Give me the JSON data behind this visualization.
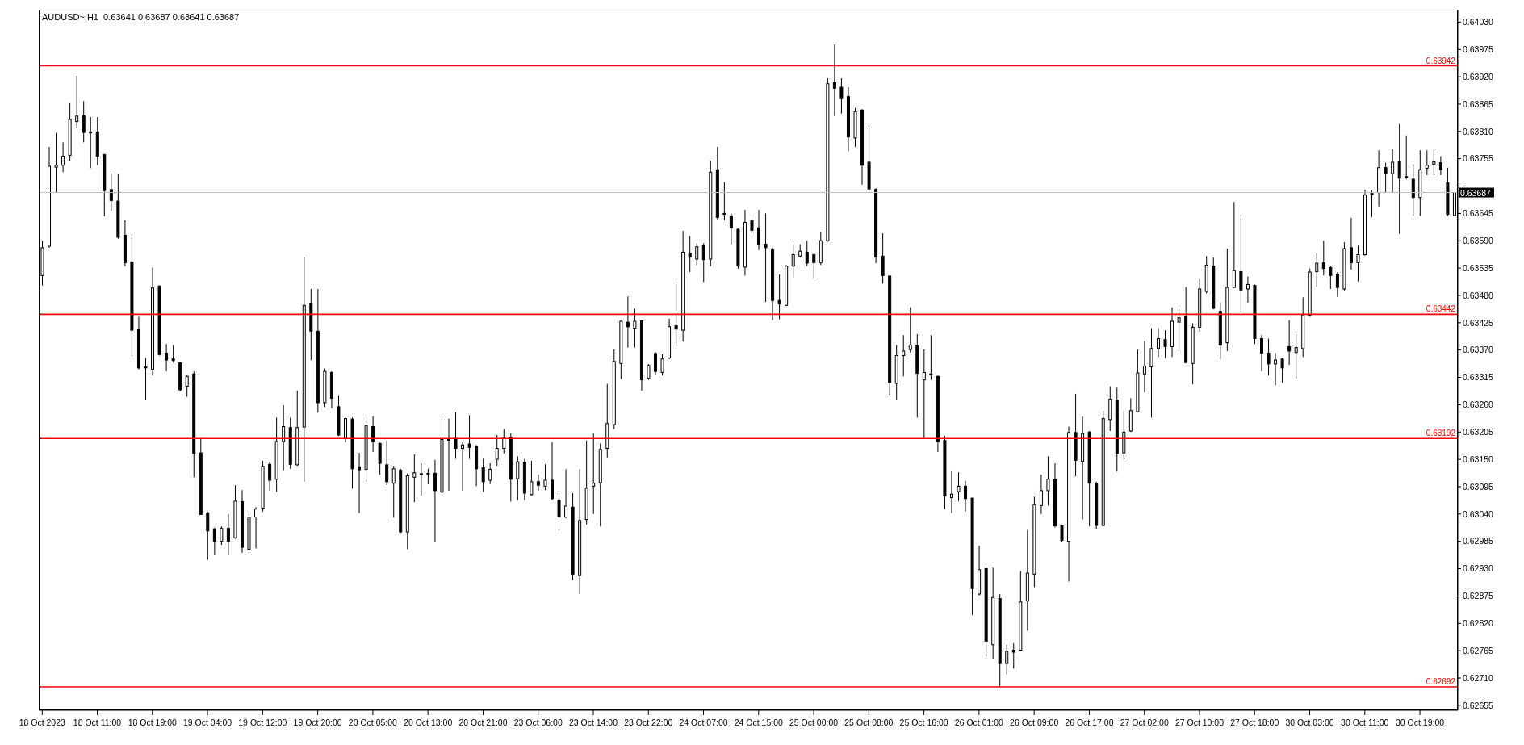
{
  "chart_data": {
    "type": "candlestick",
    "title": "AUDUSD~,H1  0.63641 0.63687 0.63641 0.63687",
    "categories": [
      "18 Oct 2023",
      null,
      null,
      null,
      null,
      null,
      null,
      null,
      "18 Oct 11:00",
      null,
      null,
      null,
      null,
      null,
      null,
      null,
      "18 Oct 19:00",
      null,
      null,
      null,
      null,
      null,
      null,
      null,
      "19 Oct 04:00",
      null,
      null,
      null,
      null,
      null,
      null,
      null,
      "19 Oct 12:00",
      null,
      null,
      null,
      null,
      null,
      null,
      null,
      "19 Oct 20:00",
      null,
      null,
      null,
      null,
      null,
      null,
      null,
      "20 Oct 05:00",
      null,
      null,
      null,
      null,
      null,
      null,
      null,
      "20 Oct 13:00",
      null,
      null,
      null,
      null,
      null,
      null,
      null,
      "20 Oct 21:00",
      null,
      null,
      null,
      null,
      null,
      null,
      null,
      "23 Oct 06:00",
      null,
      null,
      null,
      null,
      null,
      null,
      null,
      "23 Oct 14:00",
      null,
      null,
      null,
      null,
      null,
      null,
      null,
      "23 Oct 22:00",
      null,
      null,
      null,
      null,
      null,
      null,
      null,
      "24 Oct 07:00",
      null,
      null,
      null,
      null,
      null,
      null,
      null,
      "24 Oct 15:00",
      null,
      null,
      null,
      null,
      null,
      null,
      null,
      "25 Oct 00:00",
      null,
      null,
      null,
      null,
      null,
      null,
      null,
      "25 Oct 08:00",
      null,
      null,
      null,
      null,
      null,
      null,
      null,
      "25 Oct 16:00",
      null,
      null,
      null,
      null,
      null,
      null,
      null,
      "26 Oct 01:00",
      null,
      null,
      null,
      null,
      null,
      null,
      null,
      "26 Oct 09:00",
      null,
      null,
      null,
      null,
      null,
      null,
      null,
      "26 Oct 17:00",
      null,
      null,
      null,
      null,
      null,
      null,
      null,
      "27 Oct 02:00",
      null,
      null,
      null,
      null,
      null,
      null,
      null,
      "27 Oct 10:00",
      null,
      null,
      null,
      null,
      null,
      null,
      null,
      "27 Oct 18:00",
      null,
      null,
      null,
      null,
      null,
      null,
      null,
      "30 Oct 03:00",
      null,
      null,
      null,
      null,
      null,
      null,
      null,
      "30 Oct 11:00",
      null,
      null,
      null,
      null,
      null,
      null,
      null,
      "30 Oct 19:00",
      null,
      null,
      null,
      null,
      null
    ],
    "ohlc": [
      [
        0.6352,
        0.6359,
        0.635,
        0.63576
      ],
      [
        0.63579,
        0.63779,
        0.63576,
        0.6374
      ],
      [
        0.63738,
        0.63807,
        0.63688,
        0.63742
      ],
      [
        0.63742,
        0.63788,
        0.63728,
        0.6376
      ],
      [
        0.63762,
        0.63867,
        0.63751,
        0.63834
      ],
      [
        0.6383,
        0.63922,
        0.63816,
        0.63841
      ],
      [
        0.63842,
        0.63871,
        0.63788,
        0.63808
      ],
      [
        0.63807,
        0.63839,
        0.63736,
        0.63809
      ],
      [
        0.63809,
        0.63839,
        0.63742,
        0.6376
      ],
      [
        0.63763,
        0.63765,
        0.63639,
        0.63691
      ],
      [
        0.63693,
        0.63725,
        0.6365,
        0.63671
      ],
      [
        0.6367,
        0.63724,
        0.63594,
        0.63597
      ],
      [
        0.63601,
        0.63631,
        0.63539,
        0.63546
      ],
      [
        0.63547,
        0.63604,
        0.63359,
        0.6341
      ],
      [
        0.63411,
        0.63437,
        0.63331,
        0.63334
      ],
      [
        0.63336,
        0.63354,
        0.63269,
        0.63334
      ],
      [
        0.63331,
        0.63536,
        0.63319,
        0.63495
      ],
      [
        0.63499,
        0.635,
        0.63359,
        0.63361
      ],
      [
        0.63364,
        0.63382,
        0.63327,
        0.6335
      ],
      [
        0.63352,
        0.6338,
        0.63345,
        0.63349
      ],
      [
        0.63344,
        0.63345,
        0.63287,
        0.6329
      ],
      [
        0.63297,
        0.63319,
        0.63276,
        0.63317
      ],
      [
        0.63322,
        0.63327,
        0.63114,
        0.63162
      ],
      [
        0.63163,
        0.63193,
        0.63039,
        0.63039
      ],
      [
        0.63042,
        0.63045,
        0.62948,
        0.63006
      ],
      [
        0.6301,
        0.63013,
        0.62957,
        0.62985
      ],
      [
        0.62985,
        0.63015,
        0.62978,
        0.63011
      ],
      [
        0.63011,
        0.6304,
        0.62957,
        0.62985
      ],
      [
        0.62992,
        0.63098,
        0.6299,
        0.63066
      ],
      [
        0.63065,
        0.63088,
        0.62962,
        0.62973
      ],
      [
        0.62969,
        0.6304,
        0.62965,
        0.63034
      ],
      [
        0.63034,
        0.63054,
        0.62971,
        0.6305
      ],
      [
        0.63052,
        0.63147,
        0.63045,
        0.63136
      ],
      [
        0.6314,
        0.63145,
        0.63087,
        0.63108
      ],
      [
        0.6311,
        0.63234,
        0.63085,
        0.63186
      ],
      [
        0.63186,
        0.63259,
        0.63128,
        0.63216
      ],
      [
        0.63214,
        0.63234,
        0.63131,
        0.6314
      ],
      [
        0.63139,
        0.63288,
        0.63137,
        0.63214
      ],
      [
        0.63215,
        0.63557,
        0.63105,
        0.6346
      ],
      [
        0.63463,
        0.63493,
        0.6335,
        0.63408
      ],
      [
        0.63408,
        0.63493,
        0.63244,
        0.63264
      ],
      [
        0.63264,
        0.63333,
        0.63255,
        0.63327
      ],
      [
        0.63325,
        0.63327,
        0.63253,
        0.63273
      ],
      [
        0.63256,
        0.63279,
        0.63197,
        0.63199
      ],
      [
        0.63192,
        0.63234,
        0.63184,
        0.63232
      ],
      [
        0.63231,
        0.63234,
        0.63091,
        0.63131
      ],
      [
        0.63135,
        0.63163,
        0.63042,
        0.63129
      ],
      [
        0.6313,
        0.63234,
        0.63105,
        0.63218
      ],
      [
        0.63216,
        0.63237,
        0.63165,
        0.63186
      ],
      [
        0.63182,
        0.63184,
        0.63119,
        0.63142
      ],
      [
        0.63139,
        0.63188,
        0.63098,
        0.63105
      ],
      [
        0.63102,
        0.63137,
        0.63033,
        0.63131
      ],
      [
        0.63128,
        0.63131,
        0.63002,
        0.63004
      ],
      [
        0.63004,
        0.63122,
        0.62969,
        0.63117
      ],
      [
        0.63114,
        0.6316,
        0.63064,
        0.63123
      ],
      [
        0.63121,
        0.63142,
        0.63077,
        0.6312
      ],
      [
        0.63122,
        0.63131,
        0.631,
        0.63121
      ],
      [
        0.63122,
        0.63149,
        0.62983,
        0.63087
      ],
      [
        0.63084,
        0.63236,
        0.63082,
        0.6319
      ],
      [
        0.6319,
        0.63232,
        0.63087,
        0.63189
      ],
      [
        0.63192,
        0.63245,
        0.63151,
        0.63172
      ],
      [
        0.63172,
        0.63185,
        0.63087,
        0.63179
      ],
      [
        0.63181,
        0.63239,
        0.63151,
        0.63174
      ],
      [
        0.63176,
        0.63179,
        0.63096,
        0.63131
      ],
      [
        0.63133,
        0.63151,
        0.63085,
        0.63105
      ],
      [
        0.63108,
        0.63142,
        0.631,
        0.6313
      ],
      [
        0.6315,
        0.63199,
        0.63137,
        0.63172
      ],
      [
        0.63172,
        0.63211,
        0.63162,
        0.63193
      ],
      [
        0.63194,
        0.63202,
        0.63065,
        0.6311
      ],
      [
        0.63111,
        0.63156,
        0.63068,
        0.63145
      ],
      [
        0.63144,
        0.63151,
        0.63068,
        0.63082
      ],
      [
        0.63079,
        0.63147,
        0.63077,
        0.63105
      ],
      [
        0.63105,
        0.63119,
        0.63087,
        0.63098
      ],
      [
        0.63096,
        0.6314,
        0.63088,
        0.63108
      ],
      [
        0.63108,
        0.63185,
        0.63068,
        0.63071
      ],
      [
        0.63068,
        0.63082,
        0.63008,
        0.63034
      ],
      [
        0.63034,
        0.6313,
        0.63031,
        0.63056
      ],
      [
        0.63054,
        0.63082,
        0.62907,
        0.62919
      ],
      [
        0.62916,
        0.6313,
        0.62879,
        0.63027
      ],
      [
        0.63029,
        0.63188,
        0.63019,
        0.63092
      ],
      [
        0.63096,
        0.63202,
        0.6304,
        0.63102
      ],
      [
        0.63103,
        0.63182,
        0.63015,
        0.6317
      ],
      [
        0.63172,
        0.63302,
        0.63153,
        0.63222
      ],
      [
        0.6322,
        0.63371,
        0.63211,
        0.63347
      ],
      [
        0.63343,
        0.6343,
        0.63312,
        0.63428
      ],
      [
        0.63426,
        0.63478,
        0.63375,
        0.63417
      ],
      [
        0.63414,
        0.63453,
        0.63375,
        0.63428
      ],
      [
        0.63429,
        0.6343,
        0.63288,
        0.6331
      ],
      [
        0.63313,
        0.63342,
        0.6331,
        0.63339
      ],
      [
        0.63363,
        0.63366,
        0.63321,
        0.63327
      ],
      [
        0.63325,
        0.63362,
        0.63319,
        0.63352
      ],
      [
        0.63354,
        0.63433,
        0.63352,
        0.63417
      ],
      [
        0.63419,
        0.63507,
        0.63377,
        0.63412
      ],
      [
        0.6341,
        0.6361,
        0.63387,
        0.63567
      ],
      [
        0.63565,
        0.63599,
        0.63527,
        0.63557
      ],
      [
        0.63553,
        0.63585,
        0.63541,
        0.63578
      ],
      [
        0.6358,
        0.63585,
        0.63507,
        0.63552
      ],
      [
        0.63553,
        0.63751,
        0.63539,
        0.63728
      ],
      [
        0.63733,
        0.63779,
        0.63633,
        0.63637
      ],
      [
        0.63645,
        0.63708,
        0.63631,
        0.63644
      ],
      [
        0.6364,
        0.63645,
        0.63583,
        0.63616
      ],
      [
        0.63613,
        0.63615,
        0.63534,
        0.63539
      ],
      [
        0.63537,
        0.63652,
        0.6352,
        0.63627
      ],
      [
        0.63631,
        0.63645,
        0.63604,
        0.63611
      ],
      [
        0.63616,
        0.63652,
        0.63571,
        0.63582
      ],
      [
        0.63583,
        0.63645,
        0.63467,
        0.63576
      ],
      [
        0.63572,
        0.63576,
        0.6343,
        0.6347
      ],
      [
        0.6347,
        0.63522,
        0.63432,
        0.63463
      ],
      [
        0.6346,
        0.63541,
        0.63459,
        0.63539
      ],
      [
        0.63539,
        0.63583,
        0.63516,
        0.63562
      ],
      [
        0.63559,
        0.63583,
        0.63556,
        0.63569
      ],
      [
        0.63567,
        0.6359,
        0.63539,
        0.63545
      ],
      [
        0.63562,
        0.63564,
        0.63514,
        0.63546
      ],
      [
        0.63546,
        0.63608,
        0.63541,
        0.6359
      ],
      [
        0.6359,
        0.63917,
        0.63588,
        0.63906
      ],
      [
        0.63908,
        0.63985,
        0.63841,
        0.63897
      ],
      [
        0.63899,
        0.63917,
        0.63846,
        0.63876
      ],
      [
        0.6388,
        0.63899,
        0.6377,
        0.63799
      ],
      [
        0.63797,
        0.63857,
        0.63779,
        0.6385
      ],
      [
        0.63853,
        0.63855,
        0.63703,
        0.63742
      ],
      [
        0.63748,
        0.63816,
        0.63691,
        0.63694
      ],
      [
        0.63693,
        0.63696,
        0.63545,
        0.63557
      ],
      [
        0.63559,
        0.63605,
        0.63504,
        0.6352
      ],
      [
        0.63519,
        0.6352,
        0.6328,
        0.63305
      ],
      [
        0.63303,
        0.6338,
        0.63269,
        0.63359
      ],
      [
        0.63359,
        0.634,
        0.63317,
        0.63368
      ],
      [
        0.63371,
        0.63456,
        0.63365,
        0.6338
      ],
      [
        0.63379,
        0.63402,
        0.63234,
        0.63323
      ],
      [
        0.6331,
        0.63371,
        0.63193,
        0.63325
      ],
      [
        0.63322,
        0.634,
        0.6331,
        0.63321
      ],
      [
        0.63317,
        0.63319,
        0.63165,
        0.63186
      ],
      [
        0.63188,
        0.63197,
        0.6305,
        0.63076
      ],
      [
        0.63073,
        0.63126,
        0.63042,
        0.6308
      ],
      [
        0.63085,
        0.63124,
        0.63066,
        0.63096
      ],
      [
        0.63096,
        0.63107,
        0.63045,
        0.63071
      ],
      [
        0.63072,
        0.63073,
        0.62837,
        0.6289
      ],
      [
        0.62879,
        0.62976,
        0.62876,
        0.62928
      ],
      [
        0.6293,
        0.62934,
        0.62754,
        0.62784
      ],
      [
        0.62777,
        0.62932,
        0.62749,
        0.62872
      ],
      [
        0.6287,
        0.62879,
        0.62693,
        0.62739
      ],
      [
        0.62739,
        0.62777,
        0.62717,
        0.62764
      ],
      [
        0.62766,
        0.6278,
        0.62729,
        0.62762
      ],
      [
        0.62766,
        0.62925,
        0.62764,
        0.62863
      ],
      [
        0.62865,
        0.63008,
        0.62805,
        0.62921
      ],
      [
        0.62919,
        0.63075,
        0.62893,
        0.63059
      ],
      [
        0.63057,
        0.63119,
        0.6304,
        0.63087
      ],
      [
        0.63087,
        0.63156,
        0.63057,
        0.6311
      ],
      [
        0.6311,
        0.63142,
        0.63013,
        0.63016
      ],
      [
        0.63016,
        0.63018,
        0.62983,
        0.62987
      ],
      [
        0.62985,
        0.63216,
        0.62904,
        0.63204
      ],
      [
        0.63204,
        0.63282,
        0.63116,
        0.63148
      ],
      [
        0.63146,
        0.63236,
        0.63029,
        0.63202
      ],
      [
        0.63205,
        0.63207,
        0.63015,
        0.63102
      ],
      [
        0.63101,
        0.63105,
        0.6301,
        0.63017
      ],
      [
        0.63017,
        0.63248,
        0.63015,
        0.63232
      ],
      [
        0.6323,
        0.63297,
        0.63207,
        0.63271
      ],
      [
        0.63269,
        0.63294,
        0.63125,
        0.63162
      ],
      [
        0.63163,
        0.63248,
        0.6315,
        0.63205
      ],
      [
        0.63207,
        0.63273,
        0.63205,
        0.63248
      ],
      [
        0.63246,
        0.63371,
        0.63245,
        0.63324
      ],
      [
        0.63322,
        0.63388,
        0.63285,
        0.63338
      ],
      [
        0.63336,
        0.63414,
        0.63234,
        0.63373
      ],
      [
        0.63373,
        0.63414,
        0.63356,
        0.63393
      ],
      [
        0.63391,
        0.6341,
        0.63354,
        0.63377
      ],
      [
        0.63377,
        0.63456,
        0.63356,
        0.63428
      ],
      [
        0.63426,
        0.63453,
        0.63368,
        0.63435
      ],
      [
        0.63437,
        0.63497,
        0.63343,
        0.63345
      ],
      [
        0.63343,
        0.63424,
        0.63301,
        0.63416
      ],
      [
        0.63416,
        0.63513,
        0.63407,
        0.63493
      ],
      [
        0.63488,
        0.63559,
        0.63484,
        0.63541
      ],
      [
        0.63539,
        0.63556,
        0.63452,
        0.63454
      ],
      [
        0.63448,
        0.63465,
        0.63352,
        0.6338
      ],
      [
        0.63385,
        0.63574,
        0.63368,
        0.63496
      ],
      [
        0.63496,
        0.63668,
        0.63495,
        0.6353
      ],
      [
        0.63528,
        0.63643,
        0.63445,
        0.63491
      ],
      [
        0.63493,
        0.63518,
        0.63465,
        0.63502
      ],
      [
        0.635,
        0.63502,
        0.63382,
        0.63393
      ],
      [
        0.63393,
        0.634,
        0.63327,
        0.63364
      ],
      [
        0.63364,
        0.63393,
        0.63319,
        0.63342
      ],
      [
        0.63342,
        0.63364,
        0.63299,
        0.6335
      ],
      [
        0.63352,
        0.63354,
        0.63304,
        0.63334
      ],
      [
        0.63377,
        0.6343,
        0.6334,
        0.63368
      ],
      [
        0.63365,
        0.63402,
        0.63313,
        0.63375
      ],
      [
        0.63373,
        0.63476,
        0.63356,
        0.6344
      ],
      [
        0.6344,
        0.63534,
        0.63437,
        0.63527
      ],
      [
        0.63528,
        0.63565,
        0.63497,
        0.63545
      ],
      [
        0.63546,
        0.6359,
        0.6352,
        0.63534
      ],
      [
        0.63536,
        0.63539,
        0.63493,
        0.6352
      ],
      [
        0.63523,
        0.63527,
        0.63477,
        0.63496
      ],
      [
        0.63493,
        0.63587,
        0.6349,
        0.63574
      ],
      [
        0.63576,
        0.63636,
        0.63532,
        0.63546
      ],
      [
        0.63546,
        0.6358,
        0.63508,
        0.63562
      ],
      [
        0.63562,
        0.63693,
        0.6356,
        0.63682
      ],
      [
        0.63685,
        0.63691,
        0.63638,
        0.63683
      ],
      [
        0.63687,
        0.63772,
        0.63659,
        0.63737
      ],
      [
        0.63737,
        0.63747,
        0.63688,
        0.63725
      ],
      [
        0.63725,
        0.63774,
        0.63688,
        0.63748
      ],
      [
        0.63749,
        0.63825,
        0.63604,
        0.63716
      ],
      [
        0.63719,
        0.63802,
        0.63714,
        0.63718
      ],
      [
        0.63714,
        0.63744,
        0.6364,
        0.63677
      ],
      [
        0.63677,
        0.63772,
        0.6364,
        0.63733
      ],
      [
        0.63736,
        0.63772,
        0.63722,
        0.63742
      ],
      [
        0.63744,
        0.63774,
        0.63722,
        0.63749
      ],
      [
        0.63747,
        0.6376,
        0.63722,
        0.63733
      ],
      [
        0.63707,
        0.63737,
        0.6364,
        0.63643
      ],
      [
        0.63641,
        0.63687,
        0.63641,
        0.63687
      ]
    ],
    "ylim": [
      0.62645,
      0.64055
    ],
    "yticks": [
      0.62655,
      {
        "value": 0.6271,
        "label": "0.62710"
      },
      0.62765,
      {
        "value": 0.6282,
        "label": "0.62820"
      },
      0.62875,
      {
        "value": 0.6293,
        "label": "0.62930"
      },
      0.62985,
      {
        "value": 0.6304,
        "label": "0.63040"
      },
      0.63095,
      {
        "value": 0.6315,
        "label": "0.63150"
      },
      0.63205,
      {
        "value": 0.6326,
        "label": "0.63260"
      },
      0.63315,
      {
        "value": 0.6337,
        "label": "0.63370"
      },
      0.63425,
      {
        "value": 0.6348,
        "label": "0.63480"
      },
      0.63535,
      {
        "value": 0.6359,
        "label": "0.63590"
      },
      0.63645,
      {
        "value": 0.637,
        "label": null
      },
      0.63755,
      {
        "value": 0.6381,
        "label": "0.63810"
      },
      0.63865,
      {
        "value": 0.6392,
        "label": "0.63920"
      },
      0.63975,
      {
        "value": 0.6403,
        "label": "0.64030"
      }
    ],
    "ref_lines": [
      {
        "axis": "y",
        "value": 0.63942,
        "label": "0.63942",
        "color": "#ff0000"
      },
      {
        "axis": "y",
        "value": 0.63442,
        "label": "0.63442",
        "color": "#ff0000"
      },
      {
        "axis": "y",
        "value": 0.63192,
        "label": "0.63192",
        "color": "#ff0000"
      },
      {
        "axis": "y",
        "value": 0.62692,
        "label": "0.62692",
        "color": "#ff0000"
      },
      {
        "axis": "y",
        "value": 0.63687,
        "label": "0.63687",
        "color": "#c0c0c0"
      }
    ],
    "grid": false,
    "legend": false
  }
}
